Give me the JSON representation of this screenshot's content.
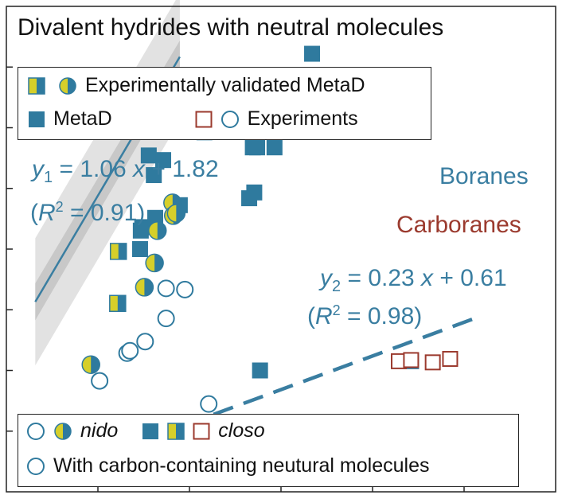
{
  "title": "Divalent hydrides with neutral molecules",
  "legend_top": {
    "row1_label": "Experimentally validated MetaD",
    "row2_label1": "MetaD",
    "row2_label2": "Experiments"
  },
  "legend_bottom": {
    "nido_label": "nido",
    "closo_label": "closo",
    "carbon_label": "With carbon-containing neutural molecules"
  },
  "boranes_label": "Boranes",
  "carboranes_label": "Carboranes",
  "eq1": {
    "y": "y",
    "sub": "1",
    "rhs": " = 1.06 ",
    "x": "x",
    "tail": " + 1.82",
    "r_open": "(",
    "r": "R",
    "r_sup": "2",
    "r_tail": " = 0.91)"
  },
  "eq2": {
    "y": "y",
    "sub": "2",
    "rhs": " = 0.23 ",
    "x": "x",
    "tail": " + 0.61",
    "r_open": "(",
    "r": "R",
    "r_sup": "2",
    "r_tail": " = 0.98)"
  },
  "colors": {
    "borane_blue": "#2f7a9e",
    "carborane_red": "#9b3a2e",
    "yellow": "#d6cf2a",
    "band_outer": "#e2e2e2",
    "band_inner": "#c8c8c8",
    "fit_line": "#3a7ea1"
  },
  "chart_data": {
    "type": "scatter",
    "title": "Divalent hydrides with neutral molecules",
    "xlabel": "",
    "ylabel": "",
    "xlim": [
      0.0,
      7.6
    ],
    "ylim": [
      0.6,
      4.8
    ],
    "grid": false,
    "fits": [
      {
        "name": "y1",
        "slope": 1.06,
        "intercept": 1.82,
        "r2": 0.91,
        "x_range": [
          0.4,
          2.4
        ],
        "style": "solid"
      },
      {
        "name": "y2",
        "slope": 0.23,
        "intercept": 0.61,
        "r2": 0.98,
        "x_range": [
          0.8,
          6.5
        ],
        "style": "dashed"
      }
    ],
    "series": [
      {
        "name": "MetaD",
        "marker": "square-filled",
        "points": [
          [
            1.88,
            2.89
          ],
          [
            2.41,
            3.99
          ],
          [
            1.85,
            2.7
          ],
          [
            1.86,
            2.86
          ],
          [
            2.06,
            2.97
          ],
          [
            1.97,
            3.51
          ],
          [
            2.04,
            3.34
          ],
          [
            2.17,
            3.47
          ],
          [
            3.71,
            3.58
          ],
          [
            3.41,
            3.58
          ],
          [
            3.47,
            3.58
          ],
          [
            3.58,
            3.73
          ],
          [
            4.23,
            4.39
          ],
          [
            3.42,
            3.59
          ],
          [
            2.74,
            3.71
          ],
          [
            2.89,
            3.89
          ],
          [
            3.36,
            3.14
          ],
          [
            3.43,
            3.19
          ],
          [
            2.4,
            3.08
          ],
          [
            3.51,
            1.65
          ],
          [
            4.22,
            3.98
          ],
          [
            5.6,
            1.73
          ]
        ]
      },
      {
        "name": "Experimentally validated MetaD (half-filled square)",
        "marker": "square-half",
        "points": [
          [
            1.54,
            2.23
          ],
          [
            1.55,
            2.68
          ]
        ]
      },
      {
        "name": "Experimentally validated MetaD (half-filled circle)",
        "marker": "circle-half",
        "points": [
          [
            1.17,
            1.7
          ],
          [
            1.91,
            2.37
          ],
          [
            2.05,
            2.58
          ],
          [
            2.09,
            2.86
          ],
          [
            2.3,
            3.1
          ],
          [
            2.31,
            2.99
          ],
          [
            2.35,
            3.01
          ]
        ]
      },
      {
        "name": "Experiments nido",
        "marker": "circle-open",
        "points": [
          [
            1.29,
            1.56
          ],
          [
            1.67,
            1.8
          ],
          [
            1.71,
            1.82
          ],
          [
            1.92,
            1.9
          ],
          [
            2.21,
            2.1
          ],
          [
            2.21,
            2.36
          ],
          [
            2.47,
            2.35
          ],
          [
            0.92,
            1.12
          ],
          [
            2.8,
            1.36
          ]
        ]
      },
      {
        "name": "Experiments closo",
        "marker": "square-open",
        "points": [
          [
            5.43,
            1.73
          ],
          [
            5.6,
            1.74
          ],
          [
            5.9,
            1.72
          ],
          [
            6.14,
            1.75
          ]
        ]
      }
    ]
  }
}
